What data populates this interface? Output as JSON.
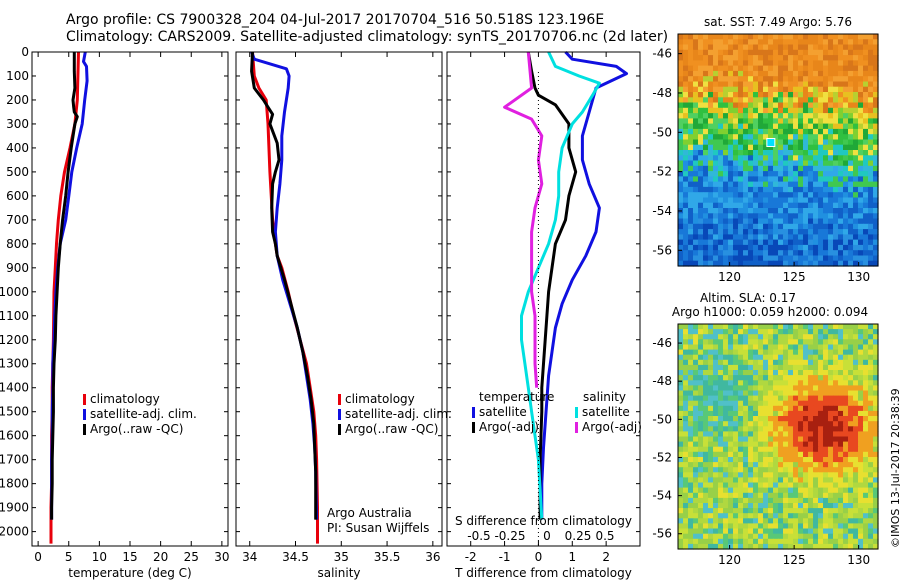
{
  "header": {
    "line1": "Argo profile: CS 7900328_204 04-Jul-2017 20170704_516 50.518S 123.196E",
    "line2": "Climatology: CARS2009. Satellite-adjusted climatology: synTS_20170706.nc (2d later)"
  },
  "side_stamp": "©IMOS 13-Jul-2017 20:38:39",
  "chart_data": [
    {
      "type": "line",
      "panel": "temperature",
      "xlabel": "temperature (deg C)",
      "ylabel": "",
      "xlim": [
        -1,
        31
      ],
      "ylim": [
        2060,
        0
      ],
      "y_inverted": true,
      "xticks": [
        "0",
        "5",
        "10",
        "15",
        "20",
        "25",
        "30"
      ],
      "xtick_values": [
        0,
        5,
        10,
        15,
        20,
        25,
        30
      ],
      "yticks": [
        "0",
        "100",
        "200",
        "300",
        "400",
        "500",
        "600",
        "700",
        "800",
        "900",
        "1000",
        "1100",
        "1200",
        "1300",
        "1400",
        "1500",
        "1600",
        "1700",
        "1800",
        "1900",
        "2000"
      ],
      "ytick_values": [
        0,
        100,
        200,
        300,
        400,
        500,
        600,
        700,
        800,
        900,
        1000,
        1100,
        1200,
        1300,
        1400,
        1500,
        1600,
        1700,
        1800,
        1900,
        2000
      ],
      "legend": [
        "climatology",
        "satellite-adj. clim.",
        "Argo(..raw -QC)"
      ],
      "legend_colors": [
        "#e8000b",
        "#1010e0",
        "#000000"
      ],
      "series": [
        {
          "name": "climatology",
          "color": "#e8000b",
          "x": [
            6.6,
            6.5,
            6.4,
            6.0,
            5.2,
            4.3,
            3.7,
            3.3,
            3.0,
            2.8,
            2.6,
            2.5,
            2.4,
            2.3,
            2.3,
            2.2,
            2.2,
            2.2,
            2.1,
            2.1
          ],
          "y": [
            0,
            100,
            200,
            300,
            400,
            500,
            600,
            700,
            800,
            900,
            1000,
            1200,
            1300,
            1400,
            1500,
            1600,
            1700,
            1800,
            1900,
            2050
          ]
        },
        {
          "name": "satellite-adj. clim.",
          "color": "#1010e0",
          "x": [
            7.7,
            7.4,
            7.9,
            8.0,
            7.6,
            7.2,
            6.3,
            5.5,
            5.0,
            4.5,
            3.6,
            3.2,
            2.9,
            2.7,
            2.6,
            2.4,
            2.4,
            2.3,
            2.3,
            2.2,
            2.2,
            2.2
          ],
          "y": [
            0,
            40,
            60,
            120,
            200,
            300,
            400,
            500,
            600,
            700,
            800,
            900,
            1000,
            1100,
            1200,
            1300,
            1400,
            1500,
            1600,
            1700,
            1800,
            1950
          ]
        },
        {
          "name": "Argo(..raw -QC)",
          "color": "#000000",
          "x": [
            5.9,
            5.9,
            6.0,
            5.7,
            5.8,
            5.9,
            6.4,
            6.0,
            5.4,
            4.9,
            4.5,
            4.0,
            3.6,
            3.3,
            3.1,
            2.9,
            2.8,
            2.6,
            2.5,
            2.5,
            2.4,
            2.3,
            2.3,
            2.2,
            2.2
          ],
          "y": [
            0,
            80,
            150,
            200,
            230,
            250,
            270,
            300,
            400,
            500,
            600,
            700,
            800,
            900,
            1000,
            1100,
            1200,
            1300,
            1400,
            1500,
            1600,
            1700,
            1800,
            1900,
            1950
          ]
        }
      ]
    },
    {
      "type": "line",
      "panel": "salinity",
      "xlabel": "salinity",
      "ylabel": "",
      "xlim": [
        33.85,
        36.1
      ],
      "ylim": [
        2060,
        0
      ],
      "y_inverted": true,
      "xticks": [
        "34",
        "34.5",
        "35",
        "35.5",
        "36"
      ],
      "xtick_values": [
        34,
        34.5,
        35,
        35.5,
        36
      ],
      "legend": [
        "climatology",
        "satellite-adj. clim.",
        "Argo(..raw -QC)"
      ],
      "legend_colors": [
        "#e8000b",
        "#1010e0",
        "#000000"
      ],
      "annotation": [
        "Argo Australia",
        "PI: Susan Wijffels"
      ],
      "series": [
        {
          "name": "climatology",
          "color": "#e8000b",
          "x": [
            34.03,
            34.05,
            34.1,
            34.18,
            34.2,
            34.22,
            34.25,
            34.28,
            34.3,
            34.35,
            34.42,
            34.48,
            34.55,
            34.62,
            34.66,
            34.7,
            34.72,
            34.73,
            34.74,
            34.74
          ],
          "y": [
            0,
            100,
            150,
            200,
            300,
            500,
            700,
            800,
            850,
            900,
            1000,
            1100,
            1200,
            1300,
            1400,
            1500,
            1600,
            1700,
            1900,
            2050
          ]
        },
        {
          "name": "satellite-adj. clim.",
          "color": "#1010e0",
          "x": [
            34.02,
            34.05,
            34.4,
            34.43,
            34.42,
            34.38,
            34.35,
            34.35,
            34.33,
            34.3,
            34.28,
            34.3,
            34.36,
            34.44,
            34.52,
            34.58,
            34.62,
            34.66,
            34.69,
            34.71,
            34.72,
            34.73
          ],
          "y": [
            0,
            30,
            70,
            100,
            150,
            250,
            350,
            450,
            550,
            650,
            750,
            850,
            950,
            1050,
            1150,
            1250,
            1350,
            1450,
            1550,
            1650,
            1750,
            1950
          ]
        },
        {
          "name": "Argo(..raw -QC)",
          "color": "#000000",
          "x": [
            34.03,
            34.02,
            34.05,
            34.15,
            34.2,
            34.25,
            34.22,
            34.3,
            34.32,
            34.28,
            34.25,
            34.24,
            34.25,
            34.28,
            34.3,
            34.38,
            34.45,
            34.52,
            34.58,
            34.63,
            34.67,
            34.7,
            34.71,
            34.72,
            34.72
          ],
          "y": [
            0,
            80,
            150,
            200,
            230,
            260,
            300,
            380,
            450,
            500,
            550,
            650,
            750,
            800,
            850,
            950,
            1050,
            1150,
            1250,
            1350,
            1450,
            1550,
            1650,
            1750,
            1950
          ]
        }
      ]
    },
    {
      "type": "line",
      "panel": "difference",
      "xlabel": "T difference from climatology",
      "xlabel2": "S difference from climatology",
      "xlim": [
        -2.7,
        3.0
      ],
      "ylim": [
        2060,
        0
      ],
      "y_inverted": true,
      "xticks": [
        "-2",
        "-1",
        "0",
        "1",
        "2"
      ],
      "xtick_values": [
        -2,
        -1,
        0,
        1,
        2
      ],
      "xticks2": [
        "-0.5",
        "-0.25",
        "0",
        "0.25",
        "0.5"
      ],
      "xtick2_values": [
        -0.5,
        -0.25,
        0,
        0.25,
        0.5
      ],
      "legend_temperature": {
        "title": "temperature",
        "items": [
          "satellite",
          "Argo(-adj)"
        ],
        "colors": [
          "#1010e0",
          "#000000"
        ]
      },
      "legend_salinity": {
        "title": "salinity",
        "items": [
          "satellite",
          "Argo(-adj)"
        ],
        "colors": [
          "#00e0e0",
          "#e020e0"
        ]
      },
      "series": [
        {
          "name": "temperature satellite",
          "color": "#1010e0",
          "x": [
            0.8,
            1.0,
            2.3,
            2.6,
            1.7,
            1.5,
            1.3,
            1.3,
            1.5,
            1.8,
            1.7,
            1.4,
            1.0,
            0.7,
            0.5,
            0.4,
            0.3,
            0.25,
            0.2,
            0.15,
            0.1,
            0.1
          ],
          "y": [
            0,
            30,
            60,
            90,
            150,
            250,
            350,
            450,
            550,
            650,
            750,
            850,
            950,
            1050,
            1150,
            1250,
            1350,
            1450,
            1550,
            1650,
            1800,
            1950
          ]
        },
        {
          "name": "temperature Argo(-adj)",
          "color": "#000000",
          "x": [
            -0.3,
            -0.2,
            -0.1,
            0.0,
            0.5,
            0.9,
            0.9,
            1.1,
            0.9,
            0.8,
            0.5,
            0.4,
            0.3,
            0.25,
            0.2,
            0.15,
            0.1,
            0.1,
            0.05,
            0.05,
            0.05
          ],
          "y": [
            0,
            80,
            150,
            180,
            220,
            300,
            400,
            500,
            600,
            700,
            800,
            900,
            1000,
            1100,
            1200,
            1300,
            1400,
            1500,
            1700,
            1850,
            1950
          ]
        },
        {
          "name": "salinity satellite",
          "color": "#00e0e0",
          "x": [
            0.3,
            0.5,
            1.2,
            1.8,
            1.6,
            1.3,
            1.0,
            0.7,
            0.6,
            0.6,
            0.5,
            0.3,
            0.0,
            -0.3,
            -0.5,
            -0.5,
            -0.4,
            -0.3,
            -0.2,
            -0.1,
            0.0,
            0.1
          ],
          "y": [
            0,
            60,
            100,
            130,
            180,
            250,
            300,
            400,
            500,
            600,
            700,
            800,
            900,
            1000,
            1100,
            1200,
            1300,
            1400,
            1500,
            1600,
            1700,
            1950
          ]
        },
        {
          "name": "salinity Argo(-adj)",
          "color": "#e020e0",
          "x": [
            -0.3,
            -0.2,
            -1.0,
            -0.2,
            0.1,
            0.0,
            0.1,
            -0.1,
            -0.2,
            -0.2,
            -0.2,
            -0.1,
            -0.1,
            -0.1,
            -0.05
          ],
          "y": [
            0,
            150,
            230,
            280,
            350,
            450,
            550,
            650,
            750,
            850,
            1000,
            1100,
            1200,
            1300,
            1400
          ]
        }
      ]
    },
    {
      "type": "heatmap",
      "panel": "sst-map",
      "title": "sat. SST: 7.49 Argo: 5.76",
      "xticks": [
        "120",
        "125",
        "130"
      ],
      "yticks": [
        "-46",
        "-48",
        "-50",
        "-52",
        "-54",
        "-56"
      ],
      "xlim": [
        116,
        131.5
      ],
      "ylim": [
        -56.8,
        -45
      ],
      "marker": {
        "lon": 123.196,
        "lat": -50.518
      }
    },
    {
      "type": "heatmap",
      "panel": "sla-map",
      "title": "Altim. SLA: 0.17",
      "subtitle": "Argo h1000: 0.059 h2000: 0.094",
      "xticks": [
        "120",
        "125",
        "130"
      ],
      "yticks": [
        "-46",
        "-48",
        "-50",
        "-52",
        "-54",
        "-56"
      ],
      "xlim": [
        116,
        131.5
      ],
      "ylim": [
        -56.8,
        -45
      ]
    }
  ]
}
